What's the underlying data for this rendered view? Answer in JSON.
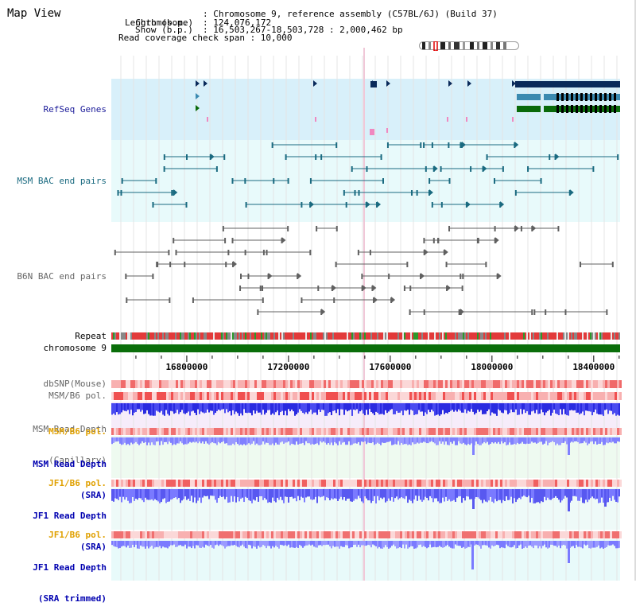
{
  "page": {
    "title": "Map View"
  },
  "header": {
    "chromosome_key": "Chromosome",
    "chromosome_val": ": Chromosome 9, reference assembly (C57BL/6J) (Build 37)",
    "length_key": "Length (b.p.)",
    "length_val": ": 124,076,172",
    "show_key": "Show (b.p.)",
    "show_val": ": 16,503,267-18,503,728 : 2,000,462 bp",
    "read_cov": "Read coverage check span : 10,000"
  },
  "tracks": {
    "refseq": "RefSeq Genes",
    "msm_bac": "MSM BAC end pairs",
    "b6n_bac": "B6N BAC end pairs",
    "repeat": "Repeat",
    "chromosome": "chromosome 9",
    "dbsnp": "dbSNP(Mouse)",
    "msm_b6_pol": "MSM/B6 pol.",
    "msm_depth_cap_1": "MSM Read Depth",
    "msm_depth_cap_2": "(Capillary)",
    "msm_b6_pol_2": "MSM/B6 pol.",
    "msm_depth_sra_1": "MSM Read Depth",
    "msm_depth_sra_2": "(SRA)",
    "jf1_b6_pol": "JF1/B6 pol.",
    "jf1_depth_sra_1": "JF1 Read Depth",
    "jf1_depth_sra_2": "(SRA)",
    "jf1_b6_pol_2": "JF1/B6 pol.",
    "jf1_depth_trim_1": "JF1 Read Depth",
    "jf1_depth_trim_2": "(SRA trimmed)"
  },
  "axis": {
    "ticks": [
      16800000,
      17200000,
      17600000,
      18000000,
      18400000
    ],
    "tick_labels": [
      "16800000",
      "17200000",
      "17600000",
      "18000000",
      "18400000"
    ],
    "range": [
      16503267,
      18503728
    ]
  },
  "colors": {
    "refseq_bg": "#d8f0fa",
    "msm_bac_bg": "#e8fafb",
    "repeat_red": "#e23a3a",
    "chromosome_green": "#0a6e0a",
    "pol_red": "#f05a5a",
    "depth_blue": "#2a2ae0",
    "depth_light": "#8080ff"
  }
}
